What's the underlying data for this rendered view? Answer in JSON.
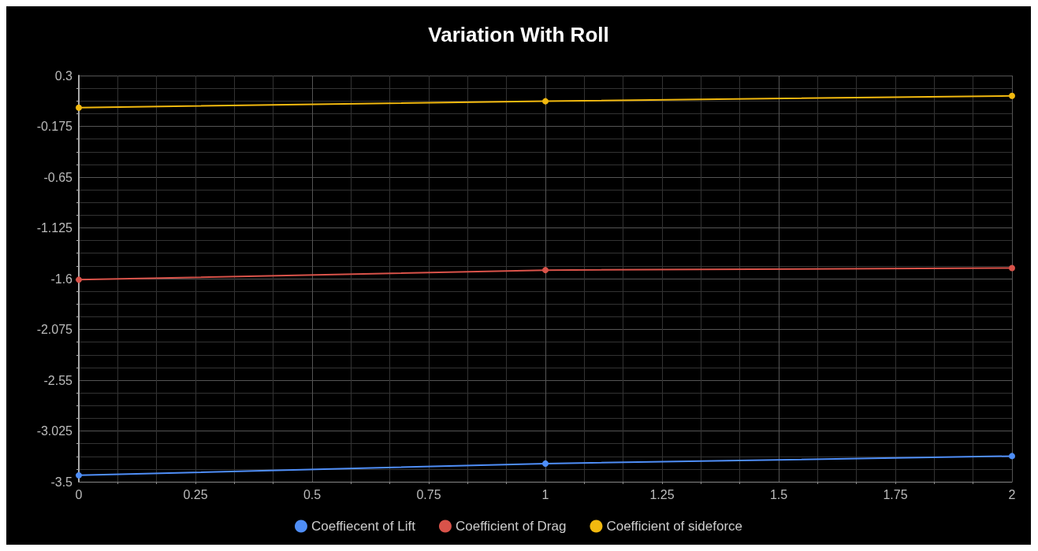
{
  "chart_data": {
    "type": "line",
    "title": "Variation With Roll",
    "x": [
      0,
      1,
      2
    ],
    "series": [
      {
        "name": "Coeffiecent of Lift",
        "color": "#4f8ef7",
        "values": [
          -3.44,
          -3.33,
          -3.26
        ]
      },
      {
        "name": "Coefficient of Drag",
        "color": "#d9534a",
        "values": [
          -1.61,
          -1.52,
          -1.5
        ]
      },
      {
        "name": "Coefficient of sideforce",
        "color": "#f2b90f",
        "values": [
          0.0,
          0.06,
          0.11
        ]
      }
    ],
    "xlim": [
      0,
      2
    ],
    "xticks": [
      0,
      0.25,
      0.5,
      0.75,
      1,
      1.25,
      1.5,
      1.75,
      2
    ],
    "ylim": [
      -3.5,
      0.3
    ],
    "yticks": [
      0.3,
      -0.175,
      -0.65,
      -1.125,
      -1.6,
      -2.075,
      -2.55,
      -3.025,
      -3.5
    ],
    "grid": true,
    "legend": "bottom",
    "marker": "circle",
    "line_style": "solid"
  }
}
